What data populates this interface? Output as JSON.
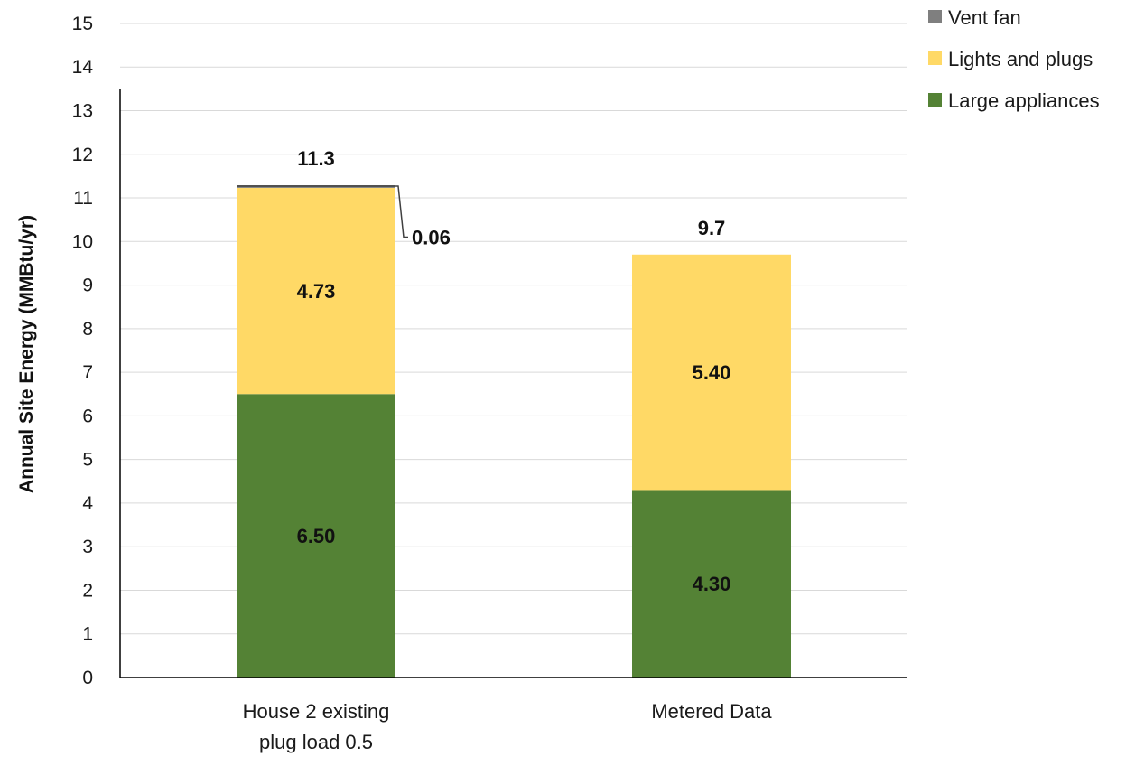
{
  "chart_data": {
    "type": "bar",
    "stacked": true,
    "ylabel": "Annual Site Energy (MMBtu/yr)",
    "xlabel": "",
    "ylim": [
      0,
      15
    ],
    "yticks": [
      0,
      1,
      2,
      3,
      4,
      5,
      6,
      7,
      8,
      9,
      10,
      11,
      12,
      13,
      14,
      15
    ],
    "grid": true,
    "legend_position": "top-right",
    "categories": [
      [
        "House 2 existing",
        "plug load 0.5"
      ],
      [
        "Metered Data"
      ]
    ],
    "series": [
      {
        "name": "Large appliances",
        "color": "#548235",
        "values": [
          6.5,
          4.3
        ],
        "labels": [
          "6.50",
          "4.30"
        ]
      },
      {
        "name": "Lights and plugs",
        "color": "#FFD966",
        "values": [
          4.73,
          5.4
        ],
        "labels": [
          "4.73",
          "5.40"
        ]
      },
      {
        "name": "Vent fan",
        "color": "#7F7F7F",
        "values": [
          0.06,
          0
        ],
        "labels": [
          "0.06",
          ""
        ]
      }
    ],
    "totals": [
      "11.3",
      "9.7"
    ]
  }
}
